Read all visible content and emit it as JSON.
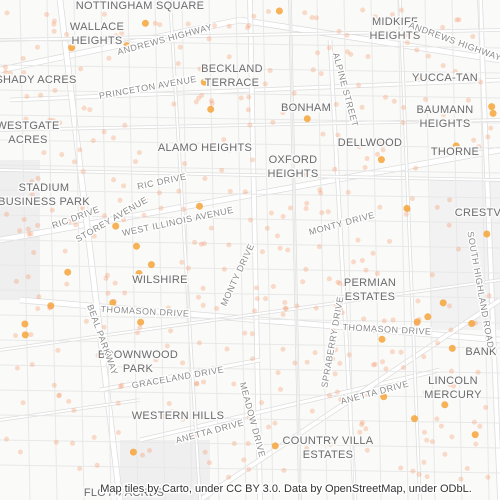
{
  "neighborhoods": [
    {
      "lines": [
        "NOTTINGHAM SQUARE"
      ]
    },
    {
      "lines": [
        "WALLACE",
        "HEIGHTS"
      ]
    },
    {
      "lines": [
        "MIDKIFF",
        "HEIGHTS"
      ]
    },
    {
      "lines": [
        "SHADY ACRES"
      ]
    },
    {
      "lines": [
        "BECKLAND",
        "TERRACE"
      ]
    },
    {
      "lines": [
        "YUCCA-TAN"
      ]
    },
    {
      "lines": [
        "BONHAM"
      ]
    },
    {
      "lines": [
        "BAUMANN",
        "HEIGHTS"
      ]
    },
    {
      "lines": [
        "WESTGATE",
        "ACRES"
      ]
    },
    {
      "lines": [
        "ALAMO HEIGHTS"
      ]
    },
    {
      "lines": [
        "DELLWOOD"
      ]
    },
    {
      "lines": [
        "THORNE"
      ]
    },
    {
      "lines": [
        "OXFORD",
        "HEIGHTS"
      ]
    },
    {
      "lines": [
        "STADIUM",
        "BUSINESS PARK"
      ]
    },
    {
      "lines": [
        "CRESTV"
      ]
    },
    {
      "lines": [
        "WILSHIRE"
      ]
    },
    {
      "lines": [
        "PERMIAN",
        "ESTATES"
      ]
    },
    {
      "lines": [
        "BANK"
      ]
    },
    {
      "lines": [
        "BROWNWOOD",
        "PARK"
      ]
    },
    {
      "lines": [
        "LINCOLN",
        "MERCURY"
      ]
    },
    {
      "lines": [
        "WESTERN HILLS"
      ]
    },
    {
      "lines": [
        "COUNTRY VILLA",
        "ESTATES"
      ]
    },
    {
      "lines": [
        "FLOYD ACRES"
      ]
    }
  ],
  "streets": [
    "ANDREWS HIGHWAY",
    "ANDREWS HIGHWAY",
    "PRINCETON AVENUE",
    "ALPINE STREET",
    "RIC DRIVE",
    "RIC DRIVE",
    "STOREY AVENUE",
    "WEST ILLINOIS AVENUE",
    "MONTY DRIVE",
    "MONTY DRIVE",
    "SOUTH HIGHLAND ROAD",
    "THOMASON DRIVE",
    "THOMASON DRIVE",
    "BEAL PARKWAY",
    "SPRABERRY DRIVE",
    "GRACELAND DRIVE",
    "ANETTA DRIVE",
    "ANETTA DRIVE",
    "MEADOW DRIVE"
  ],
  "attribution": "Map tiles by Carto, under CC BY 3.0. Data by OpenStreetMap, under ODbL."
}
